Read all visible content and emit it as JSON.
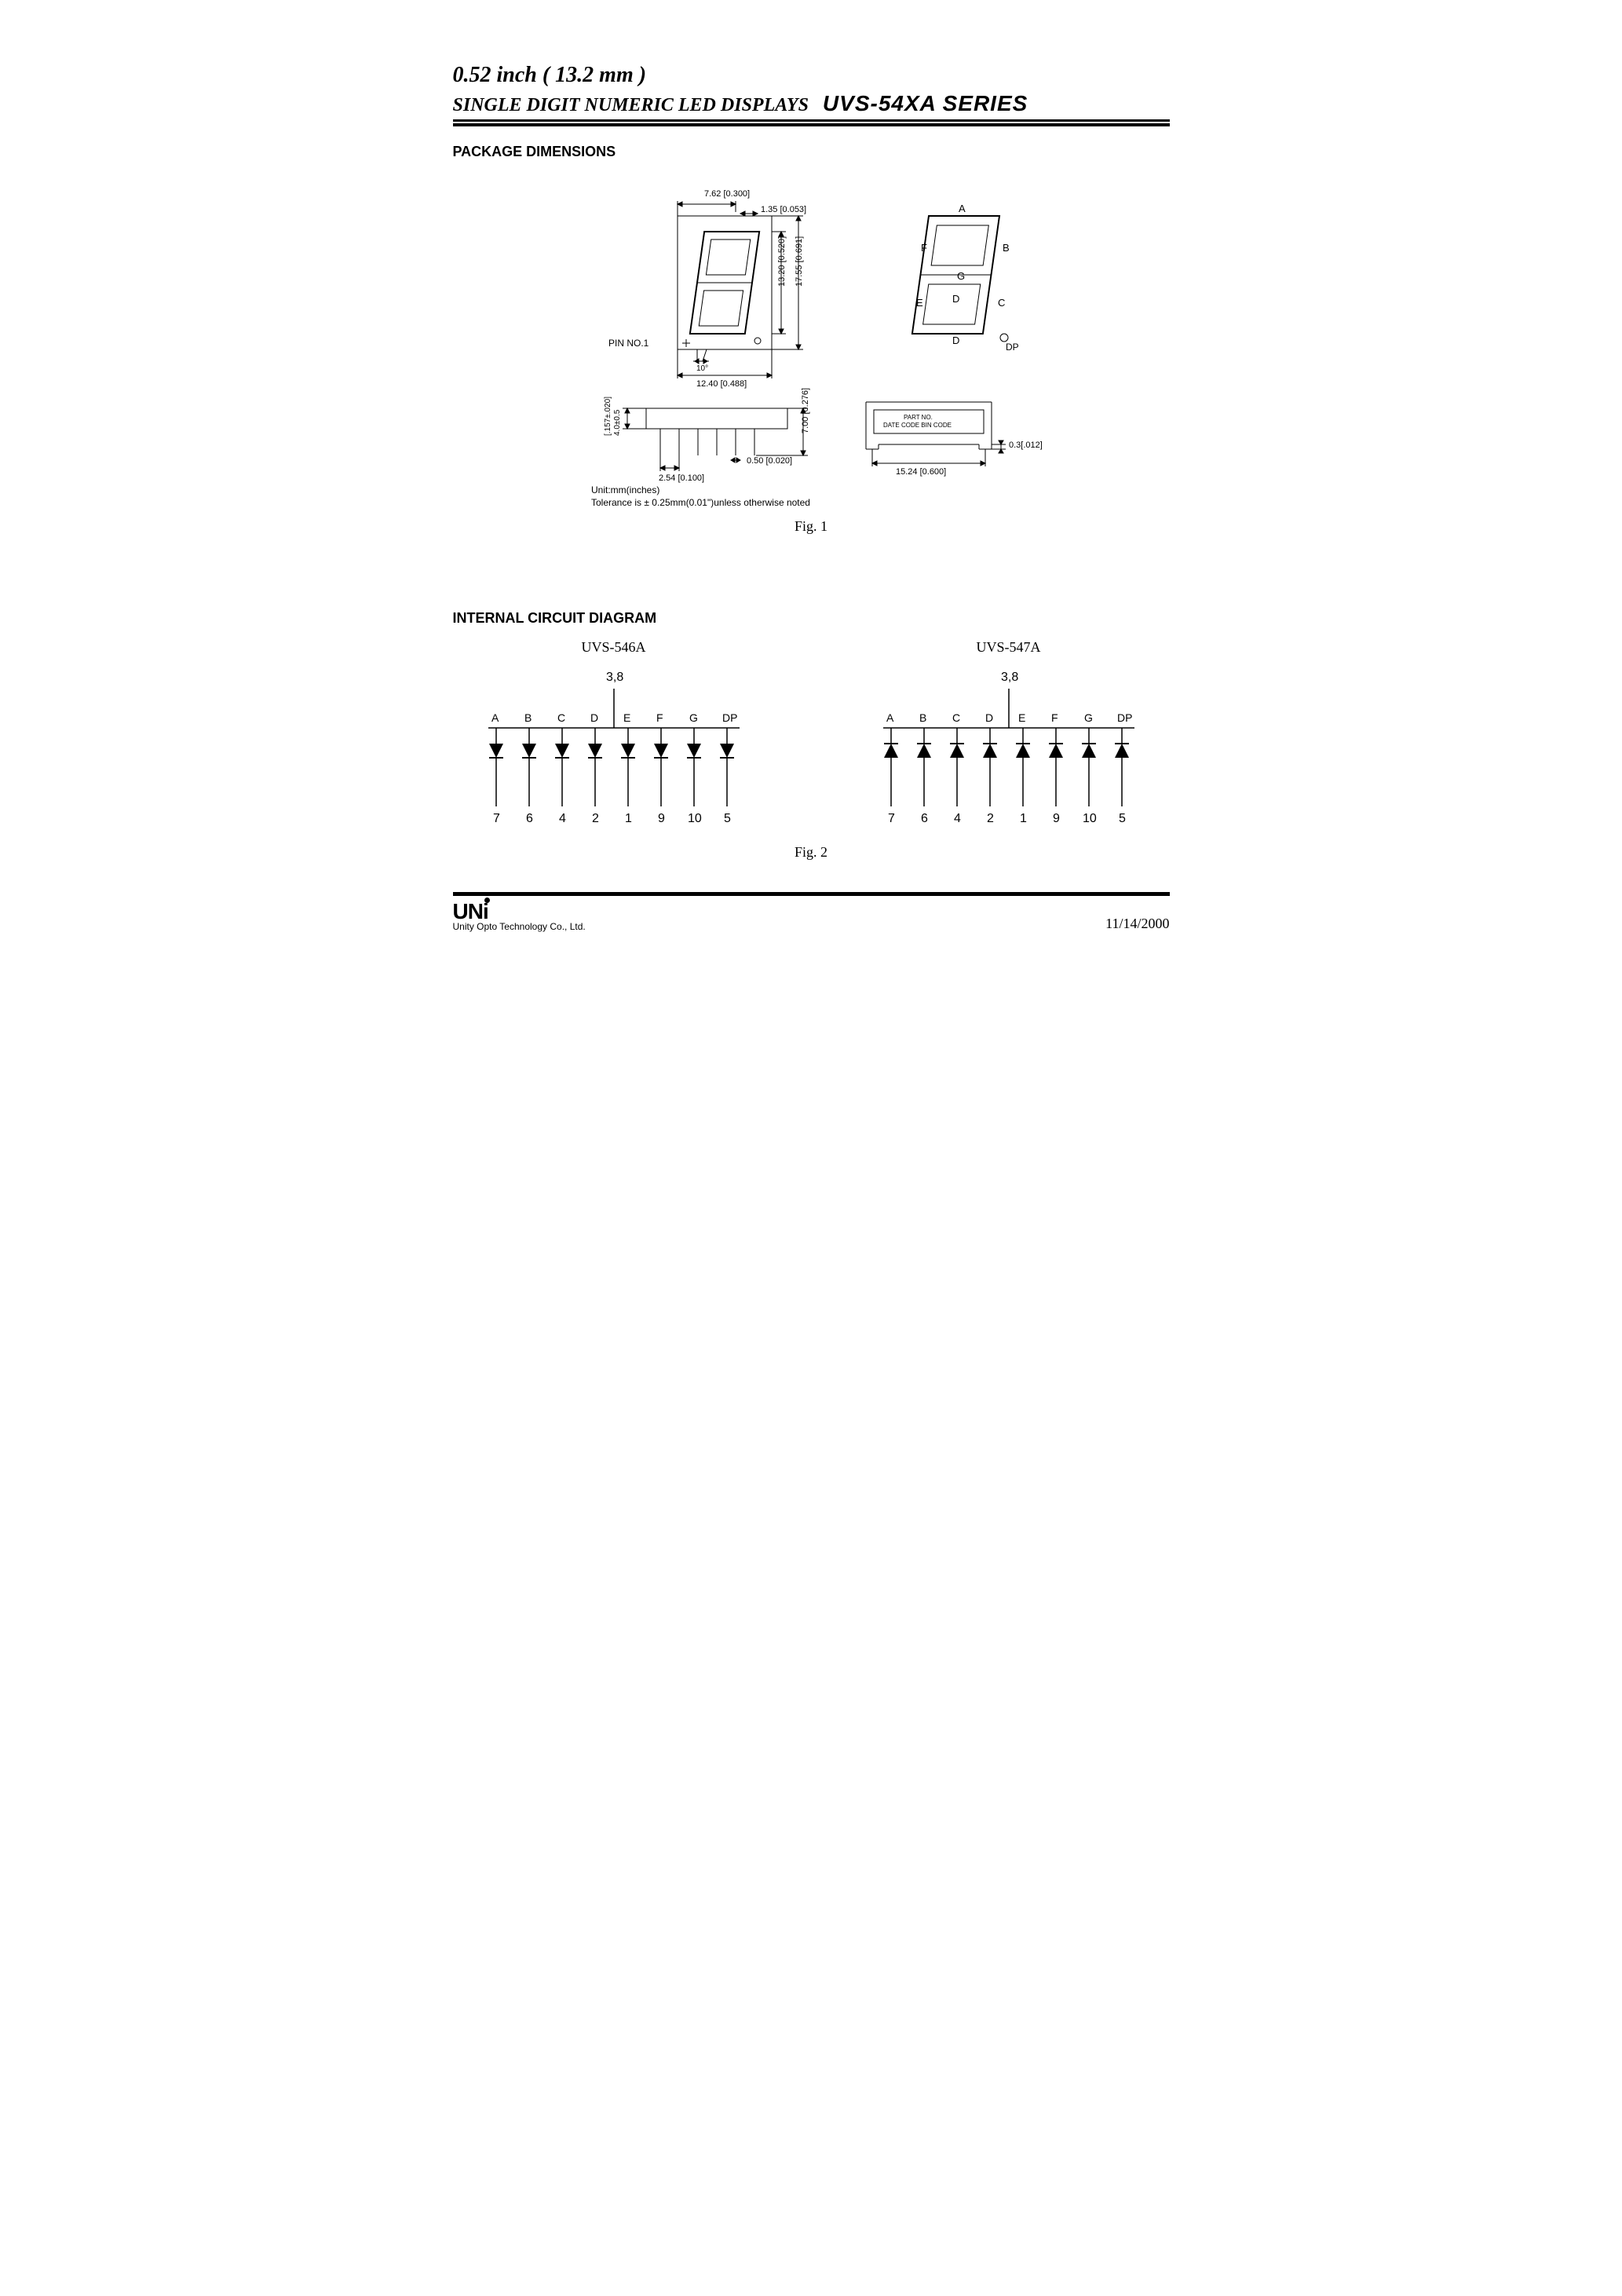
{
  "header": {
    "line1": "0.52 inch ( 13.2 mm )",
    "line2": "SINGLE DIGIT NUMERIC LED DISPLAYS",
    "series": "UVS-54XA  SERIES"
  },
  "sections": {
    "package_dimensions": "PACKAGE DIMENSIONS",
    "internal_circuit": "INTERNAL CIRCUIT DIAGRAM"
  },
  "figures": {
    "fig1_caption": "Fig. 1",
    "fig2_caption": "Fig. 2"
  },
  "package_dims": {
    "top_width_dim": "7.62 [0.300]",
    "seg_width_dim": "1.35 [0.053]",
    "digit_height_dim": "13.20 [0.520]",
    "body_height_dim": "17.55 [0.691]",
    "body_width_dim": "12.40 [0.488]",
    "pin1_label": "PIN  NO.1",
    "tilt_angle": "10°",
    "side_total_height": "7.00 [0.276]",
    "body_thick_dim": "4.0±0.5\n[.157±.020]",
    "pin_width_dim": "0.50 [0.020]",
    "pin_pitch_dim": "2.54 [0.100]",
    "back_standoff_dim": "0.3[.012]",
    "back_width_dim": "15.24 [0.600]",
    "back_label_1": "PART NO.",
    "back_label_2": "DATE CODE BIN CODE",
    "unit_note": "Unit:mm(inches)",
    "tolerance_note": "Tolerance  is ± 0.25mm(0.01\")unless  otherwise  noted",
    "segment_labels": {
      "A": "A",
      "B": "B",
      "C": "C",
      "D": "D",
      "E": "E",
      "F": "F",
      "G": "G",
      "DP": "DP"
    }
  },
  "circuit_left": {
    "title": "UVS-546A",
    "common_pins": "3,8",
    "segments": [
      "A",
      "B",
      "C",
      "D",
      "E",
      "F",
      "G",
      "DP"
    ],
    "pins": [
      "7",
      "6",
      "4",
      "2",
      "1",
      "9",
      "10",
      "5"
    ],
    "type": "common_anode"
  },
  "circuit_right": {
    "title": "UVS-547A",
    "common_pins": "3,8",
    "segments": [
      "A",
      "B",
      "C",
      "D",
      "E",
      "F",
      "G",
      "DP"
    ],
    "pins": [
      "7",
      "6",
      "4",
      "2",
      "1",
      "9",
      "10",
      "5"
    ],
    "type": "common_cathode"
  },
  "footer": {
    "logo": "UNi",
    "company": "Unity Opto Technology Co., Ltd.",
    "date": "11/14/2000"
  },
  "colors": {
    "stroke": "#000000",
    "bg": "#ffffff"
  }
}
